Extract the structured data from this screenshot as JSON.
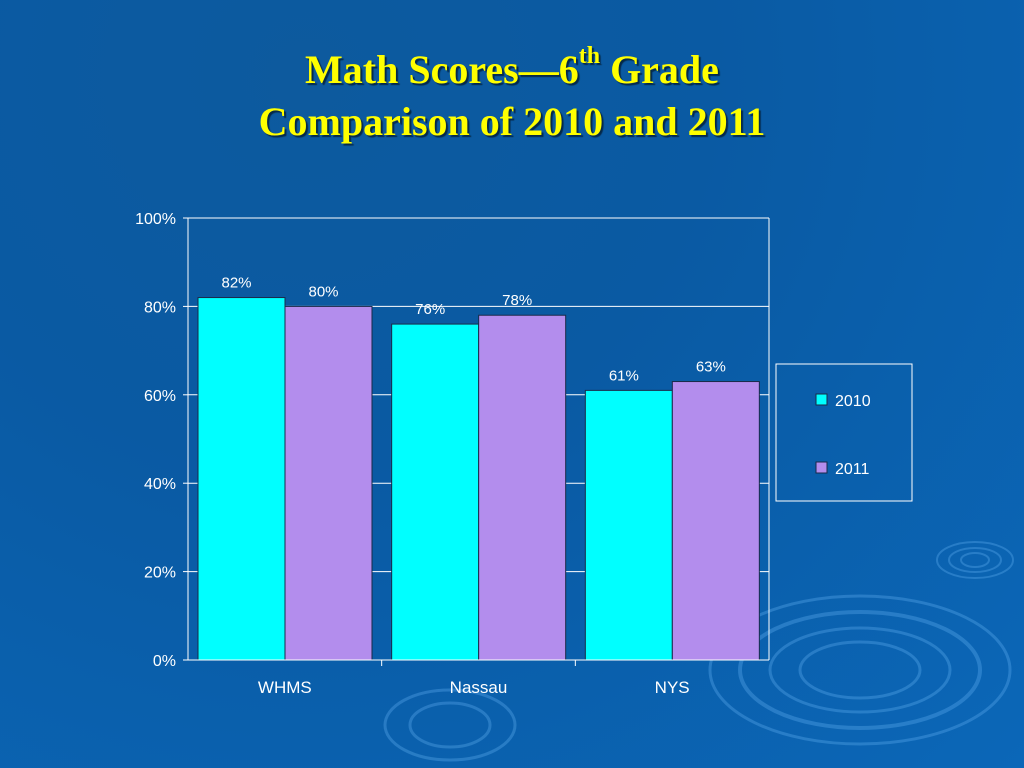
{
  "title": {
    "line1_a": "Math Scores—",
    "line1_num": "6",
    "line1_sup": "th",
    "line1_b": " Grade",
    "line2": "Comparison of 2010 and 2011"
  },
  "colors": {
    "background": "#0a5aa3",
    "title": "#ffff00",
    "series_2010": "#00ffff",
    "series_2011": "#b38ded",
    "grid": "#ffffff",
    "text": "#ffffff",
    "data_label": "#ffffff"
  },
  "chart_data": {
    "type": "bar",
    "categories": [
      "WHMS",
      "Nassau",
      "NYS"
    ],
    "series": [
      {
        "name": "2010",
        "values": [
          82,
          76,
          61
        ],
        "labels": [
          "82%",
          "76%",
          "61%"
        ]
      },
      {
        "name": "2011",
        "values": [
          80,
          78,
          63
        ],
        "labels": [
          "80%",
          "78%",
          "63%"
        ]
      }
    ],
    "ylim": [
      0,
      100
    ],
    "yticks": [
      0,
      20,
      40,
      60,
      80,
      100
    ],
    "ytick_labels": [
      "0%",
      "20%",
      "40%",
      "60%",
      "80%",
      "100%"
    ],
    "grid": true,
    "legend": "right"
  }
}
